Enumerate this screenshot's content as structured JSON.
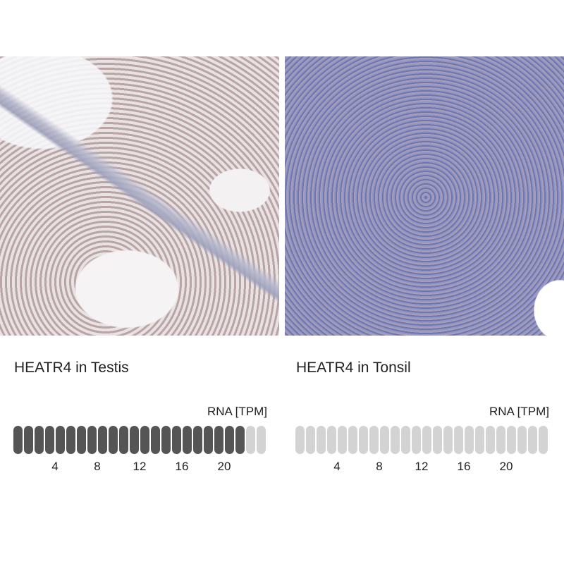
{
  "panels": [
    {
      "title": "HEATR4 in Testis",
      "rna_label": "RNA [TPM]",
      "tissue_icon": "testis-ihc-image",
      "filled": 22,
      "total": 24,
      "ticks": [
        "4",
        "8",
        "12",
        "16",
        "20"
      ],
      "colors": {
        "filled": "#555555",
        "empty": "#d3d3d3"
      }
    },
    {
      "title": "HEATR4 in Tonsil",
      "rna_label": "RNA [TPM]",
      "tissue_icon": "tonsil-ihc-image",
      "filled": 0,
      "total": 24,
      "ticks": [
        "4",
        "8",
        "12",
        "16",
        "20"
      ],
      "colors": {
        "filled": "#555555",
        "empty": "#d3d3d3"
      }
    }
  ]
}
